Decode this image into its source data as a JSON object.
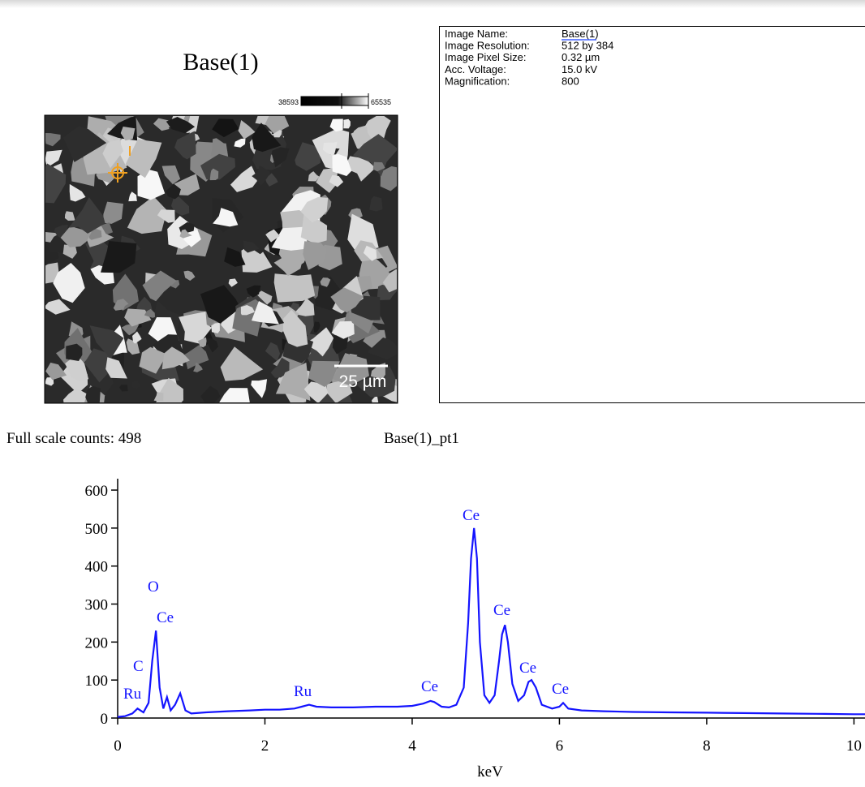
{
  "header": {
    "title": "Base(1)"
  },
  "image": {
    "colorbar_min": "38593",
    "colorbar_max": "65535",
    "scale_bar": "25 µm"
  },
  "info": {
    "rows": [
      [
        "Image Name:",
        "Base(1)"
      ],
      [
        "Image Resolution:",
        "512 by 384"
      ],
      [
        "Image Pixel Size:",
        "0.32 µm"
      ],
      [
        "Acc. Voltage:",
        "15.0 kV"
      ],
      [
        "Magnification:",
        "800"
      ]
    ]
  },
  "full_scale": "Full scale counts: 498",
  "spectrum_title": "Base(1)_pt1",
  "chart_data": {
    "type": "line",
    "x_label": "keV",
    "color": "#1414ff",
    "x": [
      0,
      0.1,
      0.2,
      0.27,
      0.35,
      0.42,
      0.47,
      0.52,
      0.57,
      0.62,
      0.67,
      0.72,
      0.78,
      0.85,
      0.92,
      1.0,
      1.2,
      1.5,
      1.8,
      2.0,
      2.2,
      2.4,
      2.5,
      2.6,
      2.7,
      2.9,
      3.2,
      3.5,
      3.8,
      4.0,
      4.15,
      4.25,
      4.3,
      4.4,
      4.5,
      4.6,
      4.7,
      4.76,
      4.8,
      4.84,
      4.88,
      4.92,
      4.98,
      5.05,
      5.12,
      5.18,
      5.22,
      5.26,
      5.3,
      5.36,
      5.44,
      5.52,
      5.58,
      5.62,
      5.68,
      5.76,
      5.9,
      6.0,
      6.05,
      6.12,
      6.3,
      6.6,
      7.0,
      7.5,
      8.0,
      8.5,
      9.0,
      9.5,
      10.0,
      10.15
    ],
    "values": [
      3,
      5,
      12,
      25,
      15,
      40,
      150,
      230,
      80,
      25,
      55,
      20,
      35,
      65,
      20,
      12,
      15,
      18,
      20,
      22,
      22,
      25,
      30,
      35,
      30,
      28,
      28,
      30,
      30,
      32,
      38,
      45,
      42,
      30,
      28,
      35,
      80,
      250,
      420,
      500,
      420,
      200,
      60,
      40,
      60,
      150,
      220,
      245,
      200,
      90,
      45,
      60,
      95,
      100,
      80,
      35,
      25,
      30,
      40,
      25,
      20,
      18,
      16,
      15,
      14,
      13,
      12,
      11,
      10,
      10
    ],
    "xlim": [
      0,
      10.15
    ],
    "ylim": [
      0,
      630
    ],
    "xticks": [
      0,
      2,
      4,
      6,
      8,
      10
    ],
    "yticks": [
      0,
      100,
      200,
      300,
      400,
      500,
      600
    ],
    "annotations": [
      "Ru",
      "C",
      "O",
      "Ce",
      "Ru",
      "Ce",
      "Ce",
      "Ce",
      "Ce",
      "Ce"
    ]
  }
}
